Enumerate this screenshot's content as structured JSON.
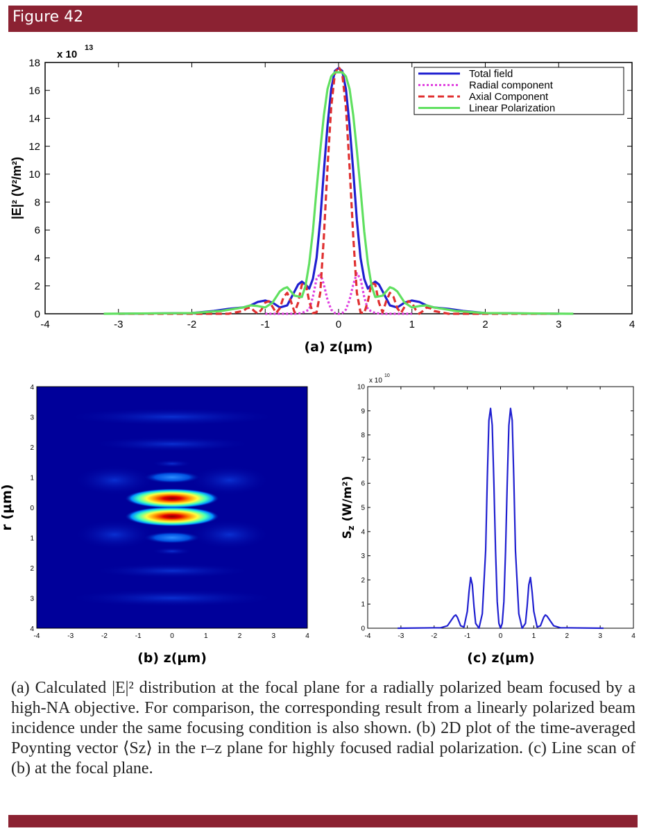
{
  "header": {
    "title": "Figure 42"
  },
  "caption": {
    "text": "(a) Calculated |E|² distribution at the focal plane for a radially polarized beam focused by a high-NA objective. For comparison, the corresponding result from a linearly polarized beam incidence under the same focusing condition is also shown. (b) 2D plot of the time-averaged Poynting vector ⟨Sz⟩ in the r–z plane for highly focused radial polarization. (c) Line scan of (b) at the focal plane."
  },
  "colors": {
    "header_bar": "#8b2232",
    "total_field": "#1f1fd0",
    "radial_component": "#e040e0",
    "axial_component": "#e03030",
    "linear_polarization": "#60e060",
    "line_scan": "#1f1fd0"
  },
  "chart_data": [
    {
      "id": "a",
      "type": "line",
      "xlabel": "(a)  z(µm)",
      "ylabel": "|E|² (V²/m²)",
      "y_multiplier": "x 10",
      "y_multiplier_exp": "13",
      "xlim": [
        -4,
        4
      ],
      "ylim": [
        0,
        18
      ],
      "xticks": [
        "-4",
        "-3",
        "-2",
        "-1",
        "0",
        "1",
        "2",
        "3",
        "4"
      ],
      "yticks": [
        "0",
        "2",
        "4",
        "6",
        "8",
        "10",
        "12",
        "14",
        "16",
        "18"
      ],
      "legend_position": "top-right",
      "series": [
        {
          "name": "Total field",
          "style": "solid",
          "x": [
            -3.0,
            -2.0,
            -1.7,
            -1.5,
            -1.3,
            -1.2,
            -1.1,
            -1.0,
            -0.9,
            -0.8,
            -0.7,
            -0.6,
            -0.55,
            -0.5,
            -0.45,
            -0.4,
            -0.35,
            -0.3,
            -0.25,
            -0.2,
            -0.15,
            -0.1,
            -0.05,
            0,
            0.05,
            0.1,
            0.15,
            0.2,
            0.25,
            0.3,
            0.35,
            0.4,
            0.45,
            0.5,
            0.55,
            0.6,
            0.7,
            0.8,
            0.9,
            1.0,
            1.1,
            1.2,
            1.3,
            1.5,
            1.7,
            2.0,
            3.0
          ],
          "y": [
            0,
            0.05,
            0.2,
            0.35,
            0.45,
            0.6,
            0.85,
            0.95,
            0.8,
            0.45,
            0.6,
            1.6,
            2.1,
            2.3,
            2.1,
            1.8,
            2.5,
            4.0,
            6.7,
            10.2,
            13.5,
            16.1,
            17.4,
            17.6,
            17.4,
            16.1,
            13.5,
            10.2,
            6.7,
            4.0,
            2.5,
            1.8,
            2.1,
            2.3,
            2.1,
            1.6,
            0.6,
            0.45,
            0.8,
            0.95,
            0.85,
            0.6,
            0.45,
            0.35,
            0.2,
            0.05,
            0
          ]
        },
        {
          "name": "Radial component",
          "style": "dotted",
          "x": [
            -1.0,
            -0.6,
            -0.5,
            -0.4,
            -0.35,
            -0.3,
            -0.25,
            -0.2,
            -0.15,
            -0.1,
            -0.05,
            0,
            0.05,
            0.1,
            0.15,
            0.2,
            0.25,
            0.3,
            0.35,
            0.4,
            0.5,
            0.6,
            1.0
          ],
          "y": [
            0,
            0,
            0.05,
            0.3,
            1.2,
            2.5,
            2.9,
            2.1,
            1.0,
            0.3,
            0.05,
            0,
            0.05,
            0.3,
            1.0,
            2.1,
            2.9,
            2.5,
            1.2,
            0.3,
            0.05,
            0,
            0
          ]
        },
        {
          "name": "Axial Component",
          "style": "dashed",
          "x": [
            -3.0,
            -1.5,
            -1.4,
            -1.3,
            -1.25,
            -1.2,
            -1.15,
            -1.1,
            -1.05,
            -1.0,
            -0.95,
            -0.9,
            -0.85,
            -0.8,
            -0.75,
            -0.7,
            -0.65,
            -0.6,
            -0.55,
            -0.5,
            -0.45,
            -0.4,
            -0.35,
            -0.3,
            -0.25,
            -0.2,
            -0.15,
            -0.1,
            -0.05,
            0,
            0.05,
            0.1,
            0.15,
            0.2,
            0.25,
            0.3,
            0.35,
            0.4,
            0.45,
            0.5,
            0.55,
            0.6,
            0.65,
            0.7,
            0.75,
            0.8,
            0.85,
            0.9,
            0.95,
            1.0,
            1.05,
            1.1,
            1.15,
            1.2,
            1.25,
            1.3,
            1.4,
            1.5,
            3.0
          ],
          "y": [
            0,
            0,
            0.1,
            0.2,
            0.4,
            0.45,
            0.2,
            0,
            0.3,
            0.8,
            0.9,
            0.5,
            0.05,
            0.4,
            1.2,
            1.5,
            0.9,
            0.1,
            0.8,
            2.1,
            2.2,
            0.9,
            0.05,
            0.1,
            1.5,
            5.5,
            10.5,
            14.8,
            17.2,
            17.7,
            17.2,
            14.8,
            10.5,
            5.5,
            1.5,
            0.1,
            0.05,
            0.9,
            2.2,
            2.1,
            0.8,
            0.1,
            0.9,
            1.5,
            1.2,
            0.4,
            0.05,
            0.5,
            0.9,
            0.8,
            0.3,
            0,
            0.2,
            0.45,
            0.4,
            0.2,
            0.1,
            0,
            0
          ]
        },
        {
          "name": "Linear Polarization",
          "style": "solid",
          "x": [
            -3.2,
            -2.0,
            -1.6,
            -1.3,
            -1.2,
            -1.1,
            -1.0,
            -0.9,
            -0.8,
            -0.75,
            -0.7,
            -0.6,
            -0.5,
            -0.45,
            -0.4,
            -0.35,
            -0.3,
            -0.25,
            -0.2,
            -0.15,
            -0.1,
            -0.05,
            0,
            0.05,
            0.1,
            0.15,
            0.2,
            0.25,
            0.3,
            0.35,
            0.4,
            0.45,
            0.5,
            0.6,
            0.7,
            0.75,
            0.8,
            0.9,
            1.0,
            1.1,
            1.2,
            1.3,
            1.6,
            2.0,
            3.2
          ],
          "y": [
            0,
            0.05,
            0.2,
            0.45,
            0.6,
            0.55,
            0.45,
            0.8,
            1.6,
            1.8,
            1.9,
            1.3,
            1.2,
            2.0,
            3.6,
            5.9,
            8.9,
            11.7,
            14.2,
            16.1,
            17.0,
            17.3,
            17.3,
            17.3,
            17.0,
            16.1,
            14.2,
            11.7,
            8.9,
            5.9,
            3.6,
            2.0,
            1.2,
            1.3,
            1.9,
            1.8,
            1.6,
            0.8,
            0.45,
            0.55,
            0.6,
            0.45,
            0.2,
            0.05,
            0
          ]
        }
      ]
    },
    {
      "id": "b",
      "type": "heatmap",
      "xlabel": "(b)  z(µm)",
      "ylabel": "r (µm)",
      "xlim": [
        -4,
        4
      ],
      "ylim": [
        -4,
        4
      ],
      "xticks": [
        "-4",
        "-3",
        "-2",
        "-1",
        "0",
        "1",
        "2",
        "3",
        "4"
      ],
      "yticks_top_to_bottom": [
        "4",
        "3",
        "2",
        "1",
        "0",
        "1",
        "2",
        "3",
        "4"
      ],
      "colormap": "jet",
      "peak_r": [
        0.3,
        -0.3
      ]
    },
    {
      "id": "c",
      "type": "line",
      "xlabel": "(c)  z(µm)",
      "ylabel": "Sz (W/m²)",
      "ylabel_main": "S",
      "ylabel_sub": "z",
      "ylabel_unit": " (W/m²)",
      "y_multiplier": "x 10",
      "y_multiplier_exp": "10",
      "xlim": [
        -4,
        4
      ],
      "ylim": [
        0,
        10
      ],
      "xticks": [
        "-4",
        "-3",
        "-2",
        "-1",
        "0",
        "1",
        "2",
        "3",
        "4"
      ],
      "yticks": [
        "0",
        "1",
        "2",
        "3",
        "4",
        "5",
        "6",
        "7",
        "8",
        "9",
        "10"
      ],
      "series": [
        {
          "name": "",
          "style": "solid",
          "x": [
            -3.1,
            -1.8,
            -1.6,
            -1.5,
            -1.4,
            -1.35,
            -1.3,
            -1.2,
            -1.1,
            -1.0,
            -0.95,
            -0.9,
            -0.85,
            -0.8,
            -0.75,
            -0.65,
            -0.55,
            -0.45,
            -0.4,
            -0.35,
            -0.3,
            -0.25,
            -0.2,
            -0.15,
            -0.1,
            -0.05,
            0,
            0.05,
            0.1,
            0.15,
            0.2,
            0.25,
            0.3,
            0.35,
            0.4,
            0.45,
            0.55,
            0.65,
            0.75,
            0.8,
            0.85,
            0.9,
            0.95,
            1.0,
            1.1,
            1.2,
            1.3,
            1.35,
            1.4,
            1.5,
            1.6,
            1.8,
            3.1
          ],
          "y": [
            0,
            0.02,
            0.1,
            0.3,
            0.5,
            0.55,
            0.45,
            0.1,
            0.05,
            0.7,
            1.5,
            2.1,
            1.8,
            0.9,
            0.2,
            0,
            0.6,
            3.2,
            6.2,
            8.6,
            9.1,
            8.4,
            6.0,
            3.2,
            1.1,
            0.2,
            0,
            0.2,
            1.1,
            3.2,
            6.0,
            8.4,
            9.1,
            8.6,
            6.2,
            3.2,
            0.6,
            0,
            0.2,
            0.9,
            1.8,
            2.1,
            1.5,
            0.7,
            0.05,
            0.1,
            0.45,
            0.55,
            0.5,
            0.3,
            0.1,
            0.02,
            0
          ]
        }
      ]
    }
  ]
}
